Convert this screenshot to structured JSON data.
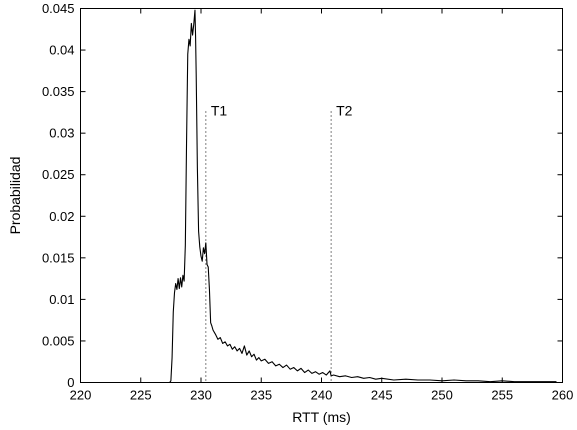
{
  "chart_data": {
    "type": "line",
    "title": "",
    "xlabel": "RTT (ms)",
    "ylabel": "Probabilidad",
    "xlim": [
      220,
      260
    ],
    "ylim": [
      0,
      0.045
    ],
    "x_ticks": [
      220,
      225,
      230,
      235,
      240,
      245,
      250,
      255,
      260
    ],
    "x_tick_labels": [
      "220",
      "225",
      "230",
      "235",
      "240",
      "245",
      "250",
      "255",
      "260"
    ],
    "y_ticks": [
      0,
      0.005,
      0.01,
      0.015,
      0.02,
      0.025,
      0.03,
      0.035,
      0.04,
      0.045
    ],
    "y_tick_labels": [
      "0",
      "0.005",
      "0.01",
      "0.015",
      "0.02",
      "0.025",
      "0.03",
      "0.035",
      "0.04",
      "0.045"
    ],
    "grid": false,
    "series": [
      {
        "color": "#000000",
        "points": [
          [
            220.0,
            0.0
          ],
          [
            226.0,
            0.0
          ],
          [
            227.4,
            0.0
          ],
          [
            227.5,
            0.0002
          ],
          [
            227.6,
            0.003
          ],
          [
            227.7,
            0.0085
          ],
          [
            227.8,
            0.0108
          ],
          [
            227.9,
            0.0119
          ],
          [
            228.0,
            0.0112
          ],
          [
            228.1,
            0.0125
          ],
          [
            228.2,
            0.0113
          ],
          [
            228.3,
            0.0126
          ],
          [
            228.4,
            0.0115
          ],
          [
            228.5,
            0.0129
          ],
          [
            228.6,
            0.0122
          ],
          [
            228.7,
            0.0165
          ],
          [
            228.8,
            0.0288
          ],
          [
            228.9,
            0.0395
          ],
          [
            229.0,
            0.0413
          ],
          [
            229.1,
            0.0405
          ],
          [
            229.2,
            0.0432
          ],
          [
            229.3,
            0.0418
          ],
          [
            229.4,
            0.0431
          ],
          [
            229.5,
            0.0448
          ],
          [
            229.55,
            0.0416
          ],
          [
            229.6,
            0.0372
          ],
          [
            229.7,
            0.0258
          ],
          [
            229.8,
            0.0182
          ],
          [
            229.9,
            0.0163
          ],
          [
            230.0,
            0.0152
          ],
          [
            230.1,
            0.0146
          ],
          [
            230.2,
            0.0162
          ],
          [
            230.3,
            0.0155
          ],
          [
            230.4,
            0.0168
          ],
          [
            230.5,
            0.0142
          ],
          [
            230.6,
            0.0139
          ],
          [
            230.7,
            0.0112
          ],
          [
            230.8,
            0.0072
          ],
          [
            230.9,
            0.0068
          ],
          [
            231.0,
            0.0063
          ],
          [
            231.2,
            0.0058
          ],
          [
            231.4,
            0.0052
          ],
          [
            231.6,
            0.0054
          ],
          [
            231.8,
            0.0047
          ],
          [
            232.0,
            0.0049
          ],
          [
            232.2,
            0.0044
          ],
          [
            232.4,
            0.0046
          ],
          [
            232.6,
            0.004
          ],
          [
            232.8,
            0.0043
          ],
          [
            233.0,
            0.0038
          ],
          [
            233.2,
            0.0041
          ],
          [
            233.4,
            0.0035
          ],
          [
            233.6,
            0.0044
          ],
          [
            233.8,
            0.0033
          ],
          [
            234.0,
            0.0038
          ],
          [
            234.2,
            0.0031
          ],
          [
            234.4,
            0.0034
          ],
          [
            234.6,
            0.0027
          ],
          [
            234.8,
            0.003
          ],
          [
            235.0,
            0.0026
          ],
          [
            235.3,
            0.0028
          ],
          [
            235.6,
            0.0023
          ],
          [
            235.9,
            0.0025
          ],
          [
            236.2,
            0.002
          ],
          [
            236.5,
            0.0022
          ],
          [
            236.8,
            0.0018
          ],
          [
            237.1,
            0.0021
          ],
          [
            237.4,
            0.0016
          ],
          [
            237.7,
            0.0018
          ],
          [
            238.0,
            0.0014
          ],
          [
            238.3,
            0.0017
          ],
          [
            238.6,
            0.0012
          ],
          [
            238.9,
            0.0015
          ],
          [
            239.2,
            0.0011
          ],
          [
            239.5,
            0.0013
          ],
          [
            239.8,
            0.001
          ],
          [
            240.1,
            0.0012
          ],
          [
            240.4,
            0.0009
          ],
          [
            240.7,
            0.0014
          ],
          [
            240.8,
            0.0008
          ],
          [
            241.0,
            0.0009
          ],
          [
            241.5,
            0.0007
          ],
          [
            242.0,
            0.0008
          ],
          [
            242.5,
            0.0006
          ],
          [
            243.0,
            0.0007
          ],
          [
            243.5,
            0.0005
          ],
          [
            244.0,
            0.0006
          ],
          [
            244.5,
            0.0004
          ],
          [
            245.0,
            0.0005
          ],
          [
            246.0,
            0.0003
          ],
          [
            247.0,
            0.0004
          ],
          [
            248.0,
            0.0003
          ],
          [
            249.0,
            0.0003
          ],
          [
            250.0,
            0.0002
          ],
          [
            251.0,
            0.0003
          ],
          [
            252.0,
            0.0002
          ],
          [
            253.0,
            0.0002
          ],
          [
            254.0,
            0.0001
          ],
          [
            255.0,
            0.0002
          ],
          [
            256.0,
            0.0001
          ],
          [
            257.0,
            0.0001
          ],
          [
            258.0,
            0.0001
          ],
          [
            259.0,
            0.0001
          ],
          [
            259.5,
            0.0001
          ]
        ]
      }
    ],
    "annotations": [
      {
        "label": "T1",
        "x": 230.4,
        "y_top": 0.0326,
        "style": "dotted vertical line"
      },
      {
        "label": "T2",
        "x": 240.8,
        "y_top": 0.0326,
        "style": "dotted vertical line"
      }
    ]
  }
}
